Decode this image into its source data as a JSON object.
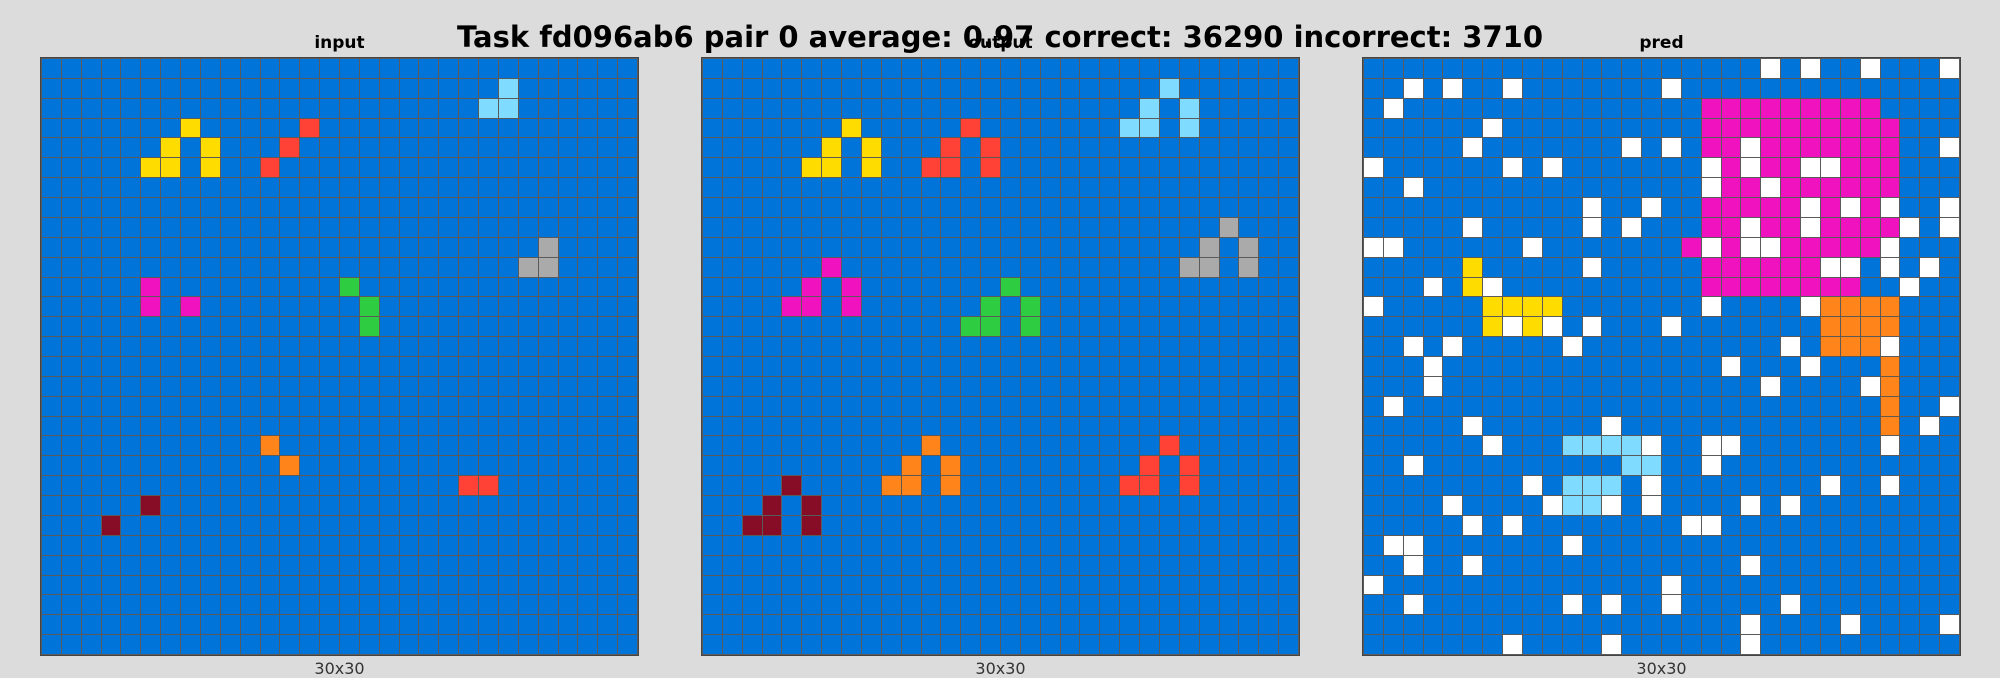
{
  "title": "Task fd096ab6 pair 0 average: 0.97 correct: 36290 incorrect: 3710",
  "palette": {
    "0": "#000000",
    "1": "#0074D9",
    "2": "#FF4136",
    "3": "#2ECC40",
    "4": "#FFDC00",
    "5": "#AAAAAA",
    "6": "#F012BE",
    "7": "#FF851B",
    "8": "#7FDBFF",
    "9": "#870C25",
    "w": "#FFFFFF"
  },
  "panels": [
    {
      "title": "input",
      "size_label": "30x30",
      "rows": 30,
      "cols": 30,
      "background": 1,
      "cells": [
        [
          1,
          23,
          8
        ],
        [
          2,
          22,
          8
        ],
        [
          2,
          23,
          8
        ],
        [
          3,
          7,
          4
        ],
        [
          3,
          13,
          2
        ],
        [
          4,
          6,
          4
        ],
        [
          4,
          8,
          4
        ],
        [
          4,
          12,
          2
        ],
        [
          5,
          5,
          4
        ],
        [
          5,
          6,
          4
        ],
        [
          5,
          8,
          4
        ],
        [
          5,
          11,
          2
        ],
        [
          9,
          25,
          5
        ],
        [
          10,
          24,
          5
        ],
        [
          10,
          25,
          5
        ],
        [
          11,
          5,
          6
        ],
        [
          11,
          15,
          3
        ],
        [
          12,
          5,
          6
        ],
        [
          12,
          7,
          6
        ],
        [
          12,
          16,
          3
        ],
        [
          13,
          16,
          3
        ],
        [
          19,
          11,
          7
        ],
        [
          20,
          12,
          7
        ],
        [
          21,
          21,
          2
        ],
        [
          21,
          22,
          2
        ],
        [
          22,
          5,
          9
        ],
        [
          23,
          3,
          9
        ]
      ]
    },
    {
      "title": "output",
      "size_label": "30x30",
      "rows": 30,
      "cols": 30,
      "background": 1,
      "cells": [
        [
          1,
          23,
          8
        ],
        [
          2,
          22,
          8
        ],
        [
          2,
          24,
          8
        ],
        [
          3,
          21,
          8
        ],
        [
          3,
          22,
          8
        ],
        [
          3,
          24,
          8
        ],
        [
          3,
          7,
          4
        ],
        [
          4,
          6,
          4
        ],
        [
          4,
          8,
          4
        ],
        [
          5,
          5,
          4
        ],
        [
          5,
          6,
          4
        ],
        [
          5,
          8,
          4
        ],
        [
          3,
          13,
          2
        ],
        [
          4,
          12,
          2
        ],
        [
          4,
          14,
          2
        ],
        [
          5,
          11,
          2
        ],
        [
          5,
          12,
          2
        ],
        [
          5,
          14,
          2
        ],
        [
          8,
          26,
          5
        ],
        [
          9,
          25,
          5
        ],
        [
          9,
          27,
          5
        ],
        [
          10,
          24,
          5
        ],
        [
          10,
          25,
          5
        ],
        [
          10,
          27,
          5
        ],
        [
          10,
          6,
          6
        ],
        [
          11,
          5,
          6
        ],
        [
          11,
          7,
          6
        ],
        [
          12,
          4,
          6
        ],
        [
          12,
          5,
          6
        ],
        [
          12,
          7,
          6
        ],
        [
          11,
          15,
          3
        ],
        [
          12,
          14,
          3
        ],
        [
          12,
          16,
          3
        ],
        [
          13,
          13,
          3
        ],
        [
          13,
          14,
          3
        ],
        [
          13,
          16,
          3
        ],
        [
          19,
          11,
          7
        ],
        [
          20,
          10,
          7
        ],
        [
          20,
          12,
          7
        ],
        [
          21,
          9,
          7
        ],
        [
          21,
          10,
          7
        ],
        [
          21,
          12,
          7
        ],
        [
          19,
          23,
          2
        ],
        [
          20,
          22,
          2
        ],
        [
          20,
          24,
          2
        ],
        [
          21,
          21,
          2
        ],
        [
          21,
          22,
          2
        ],
        [
          21,
          24,
          2
        ],
        [
          21,
          4,
          9
        ],
        [
          22,
          3,
          9
        ],
        [
          22,
          5,
          9
        ],
        [
          23,
          2,
          9
        ],
        [
          23,
          3,
          9
        ],
        [
          23,
          5,
          9
        ]
      ]
    },
    {
      "title": "pred",
      "size_label": "30x30",
      "rows": 30,
      "cols": 30,
      "background": 1,
      "cells": [
        [
          0,
          20,
          "w"
        ],
        [
          0,
          22,
          "w"
        ],
        [
          0,
          25,
          "w"
        ],
        [
          0,
          29,
          "w"
        ],
        [
          1,
          2,
          "w"
        ],
        [
          1,
          4,
          "w"
        ],
        [
          1,
          7,
          "w"
        ],
        [
          1,
          15,
          "w"
        ],
        [
          2,
          1,
          "w"
        ],
        [
          2,
          17,
          6
        ],
        [
          2,
          18,
          6
        ],
        [
          2,
          19,
          6
        ],
        [
          2,
          20,
          6
        ],
        [
          2,
          21,
          6
        ],
        [
          2,
          22,
          6
        ],
        [
          2,
          23,
          6
        ],
        [
          2,
          24,
          6
        ],
        [
          2,
          25,
          6
        ],
        [
          3,
          6,
          "w"
        ],
        [
          3,
          17,
          6
        ],
        [
          3,
          18,
          6
        ],
        [
          3,
          19,
          6
        ],
        [
          3,
          20,
          6
        ],
        [
          3,
          21,
          6
        ],
        [
          3,
          22,
          6
        ],
        [
          3,
          23,
          6
        ],
        [
          3,
          24,
          6
        ],
        [
          3,
          25,
          6
        ],
        [
          3,
          26,
          6
        ],
        [
          4,
          5,
          "w"
        ],
        [
          4,
          13,
          "w"
        ],
        [
          4,
          15,
          "w"
        ],
        [
          4,
          17,
          6
        ],
        [
          4,
          18,
          6
        ],
        [
          4,
          19,
          "w"
        ],
        [
          4,
          20,
          6
        ],
        [
          4,
          21,
          6
        ],
        [
          4,
          22,
          6
        ],
        [
          4,
          23,
          6
        ],
        [
          4,
          24,
          6
        ],
        [
          4,
          25,
          6
        ],
        [
          4,
          26,
          6
        ],
        [
          4,
          29,
          "w"
        ],
        [
          5,
          0,
          "w"
        ],
        [
          5,
          7,
          "w"
        ],
        [
          5,
          9,
          "w"
        ],
        [
          5,
          17,
          "w"
        ],
        [
          5,
          18,
          6
        ],
        [
          5,
          19,
          "w"
        ],
        [
          5,
          20,
          6
        ],
        [
          5,
          21,
          6
        ],
        [
          5,
          22,
          "w"
        ],
        [
          5,
          23,
          "w"
        ],
        [
          5,
          24,
          6
        ],
        [
          5,
          25,
          6
        ],
        [
          5,
          26,
          6
        ],
        [
          6,
          2,
          "w"
        ],
        [
          6,
          17,
          "w"
        ],
        [
          6,
          18,
          6
        ],
        [
          6,
          19,
          6
        ],
        [
          6,
          20,
          "w"
        ],
        [
          6,
          21,
          6
        ],
        [
          6,
          22,
          6
        ],
        [
          6,
          23,
          6
        ],
        [
          6,
          24,
          6
        ],
        [
          6,
          25,
          6
        ],
        [
          6,
          26,
          6
        ],
        [
          7,
          11,
          "w"
        ],
        [
          7,
          14,
          "w"
        ],
        [
          7,
          17,
          6
        ],
        [
          7,
          18,
          6
        ],
        [
          7,
          19,
          6
        ],
        [
          7,
          20,
          6
        ],
        [
          7,
          21,
          6
        ],
        [
          7,
          22,
          "w"
        ],
        [
          7,
          23,
          6
        ],
        [
          7,
          24,
          "w"
        ],
        [
          7,
          25,
          6
        ],
        [
          7,
          26,
          "w"
        ],
        [
          7,
          29,
          "w"
        ],
        [
          8,
          5,
          "w"
        ],
        [
          8,
          11,
          "w"
        ],
        [
          8,
          13,
          "w"
        ],
        [
          8,
          17,
          6
        ],
        [
          8,
          18,
          6
        ],
        [
          8,
          19,
          "w"
        ],
        [
          8,
          20,
          6
        ],
        [
          8,
          21,
          6
        ],
        [
          8,
          22,
          "w"
        ],
        [
          8,
          23,
          6
        ],
        [
          8,
          24,
          6
        ],
        [
          8,
          25,
          6
        ],
        [
          8,
          26,
          6
        ],
        [
          8,
          27,
          "w"
        ],
        [
          8,
          29,
          "w"
        ],
        [
          9,
          0,
          "w"
        ],
        [
          9,
          1,
          "w"
        ],
        [
          9,
          8,
          "w"
        ],
        [
          9,
          16,
          6
        ],
        [
          9,
          17,
          "w"
        ],
        [
          9,
          18,
          6
        ],
        [
          9,
          19,
          "w"
        ],
        [
          9,
          20,
          "w"
        ],
        [
          9,
          21,
          6
        ],
        [
          9,
          22,
          6
        ],
        [
          9,
          23,
          6
        ],
        [
          9,
          24,
          6
        ],
        [
          9,
          25,
          6
        ],
        [
          9,
          26,
          "w"
        ],
        [
          10,
          5,
          4
        ],
        [
          10,
          11,
          "w"
        ],
        [
          10,
          17,
          6
        ],
        [
          10,
          18,
          6
        ],
        [
          10,
          19,
          6
        ],
        [
          10,
          20,
          6
        ],
        [
          10,
          21,
          6
        ],
        [
          10,
          22,
          6
        ],
        [
          10,
          23,
          "w"
        ],
        [
          10,
          24,
          "w"
        ],
        [
          10,
          26,
          "w"
        ],
        [
          10,
          28,
          "w"
        ],
        [
          11,
          3,
          "w"
        ],
        [
          11,
          5,
          4
        ],
        [
          11,
          6,
          "w"
        ],
        [
          11,
          17,
          6
        ],
        [
          11,
          18,
          6
        ],
        [
          11,
          19,
          6
        ],
        [
          11,
          20,
          6
        ],
        [
          11,
          21,
          6
        ],
        [
          11,
          22,
          6
        ],
        [
          11,
          23,
          6
        ],
        [
          11,
          24,
          6
        ],
        [
          11,
          27,
          "w"
        ],
        [
          12,
          0,
          "w"
        ],
        [
          12,
          6,
          4
        ],
        [
          12,
          7,
          4
        ],
        [
          12,
          8,
          4
        ],
        [
          12,
          9,
          4
        ],
        [
          12,
          17,
          "w"
        ],
        [
          12,
          22,
          "w"
        ],
        [
          12,
          23,
          7
        ],
        [
          12,
          24,
          7
        ],
        [
          12,
          25,
          7
        ],
        [
          12,
          26,
          7
        ],
        [
          13,
          6,
          4
        ],
        [
          13,
          7,
          "w"
        ],
        [
          13,
          8,
          4
        ],
        [
          13,
          9,
          "w"
        ],
        [
          13,
          11,
          "w"
        ],
        [
          13,
          15,
          "w"
        ],
        [
          13,
          23,
          7
        ],
        [
          13,
          24,
          7
        ],
        [
          13,
          25,
          7
        ],
        [
          13,
          26,
          7
        ],
        [
          14,
          2,
          "w"
        ],
        [
          14,
          4,
          "w"
        ],
        [
          14,
          10,
          "w"
        ],
        [
          14,
          21,
          "w"
        ],
        [
          14,
          23,
          7
        ],
        [
          14,
          24,
          7
        ],
        [
          14,
          25,
          7
        ],
        [
          14,
          26,
          "w"
        ],
        [
          15,
          3,
          "w"
        ],
        [
          15,
          18,
          "w"
        ],
        [
          15,
          22,
          "w"
        ],
        [
          15,
          26,
          7
        ],
        [
          16,
          3,
          "w"
        ],
        [
          16,
          20,
          "w"
        ],
        [
          16,
          25,
          "w"
        ],
        [
          16,
          26,
          7
        ],
        [
          17,
          1,
          "w"
        ],
        [
          17,
          26,
          7
        ],
        [
          17,
          29,
          "w"
        ],
        [
          18,
          5,
          "w"
        ],
        [
          18,
          12,
          "w"
        ],
        [
          18,
          26,
          7
        ],
        [
          18,
          28,
          "w"
        ],
        [
          19,
          6,
          "w"
        ],
        [
          19,
          10,
          8
        ],
        [
          19,
          11,
          8
        ],
        [
          19,
          12,
          8
        ],
        [
          19,
          13,
          8
        ],
        [
          19,
          14,
          "w"
        ],
        [
          19,
          17,
          "w"
        ],
        [
          19,
          18,
          "w"
        ],
        [
          19,
          26,
          "w"
        ],
        [
          20,
          2,
          "w"
        ],
        [
          20,
          13,
          8
        ],
        [
          20,
          14,
          8
        ],
        [
          20,
          17,
          "w"
        ],
        [
          21,
          8,
          "w"
        ],
        [
          21,
          10,
          8
        ],
        [
          21,
          11,
          8
        ],
        [
          21,
          12,
          8
        ],
        [
          21,
          14,
          "w"
        ],
        [
          21,
          23,
          "w"
        ],
        [
          21,
          26,
          "w"
        ],
        [
          22,
          4,
          "w"
        ],
        [
          22,
          9,
          "w"
        ],
        [
          22,
          10,
          8
        ],
        [
          22,
          11,
          8
        ],
        [
          22,
          12,
          "w"
        ],
        [
          22,
          14,
          "w"
        ],
        [
          22,
          19,
          "w"
        ],
        [
          22,
          21,
          "w"
        ],
        [
          23,
          5,
          "w"
        ],
        [
          23,
          7,
          "w"
        ],
        [
          23,
          16,
          "w"
        ],
        [
          23,
          17,
          "w"
        ],
        [
          24,
          1,
          "w"
        ],
        [
          24,
          2,
          "w"
        ],
        [
          24,
          10,
          "w"
        ],
        [
          25,
          2,
          "w"
        ],
        [
          25,
          5,
          "w"
        ],
        [
          25,
          19,
          "w"
        ],
        [
          26,
          0,
          "w"
        ],
        [
          26,
          15,
          "w"
        ],
        [
          27,
          2,
          "w"
        ],
        [
          27,
          10,
          "w"
        ],
        [
          27,
          12,
          "w"
        ],
        [
          27,
          15,
          "w"
        ],
        [
          27,
          21,
          "w"
        ],
        [
          28,
          19,
          "w"
        ],
        [
          28,
          24,
          "w"
        ],
        [
          28,
          29,
          "w"
        ],
        [
          29,
          7,
          "w"
        ],
        [
          29,
          12,
          "w"
        ],
        [
          29,
          19,
          "w"
        ]
      ]
    }
  ]
}
